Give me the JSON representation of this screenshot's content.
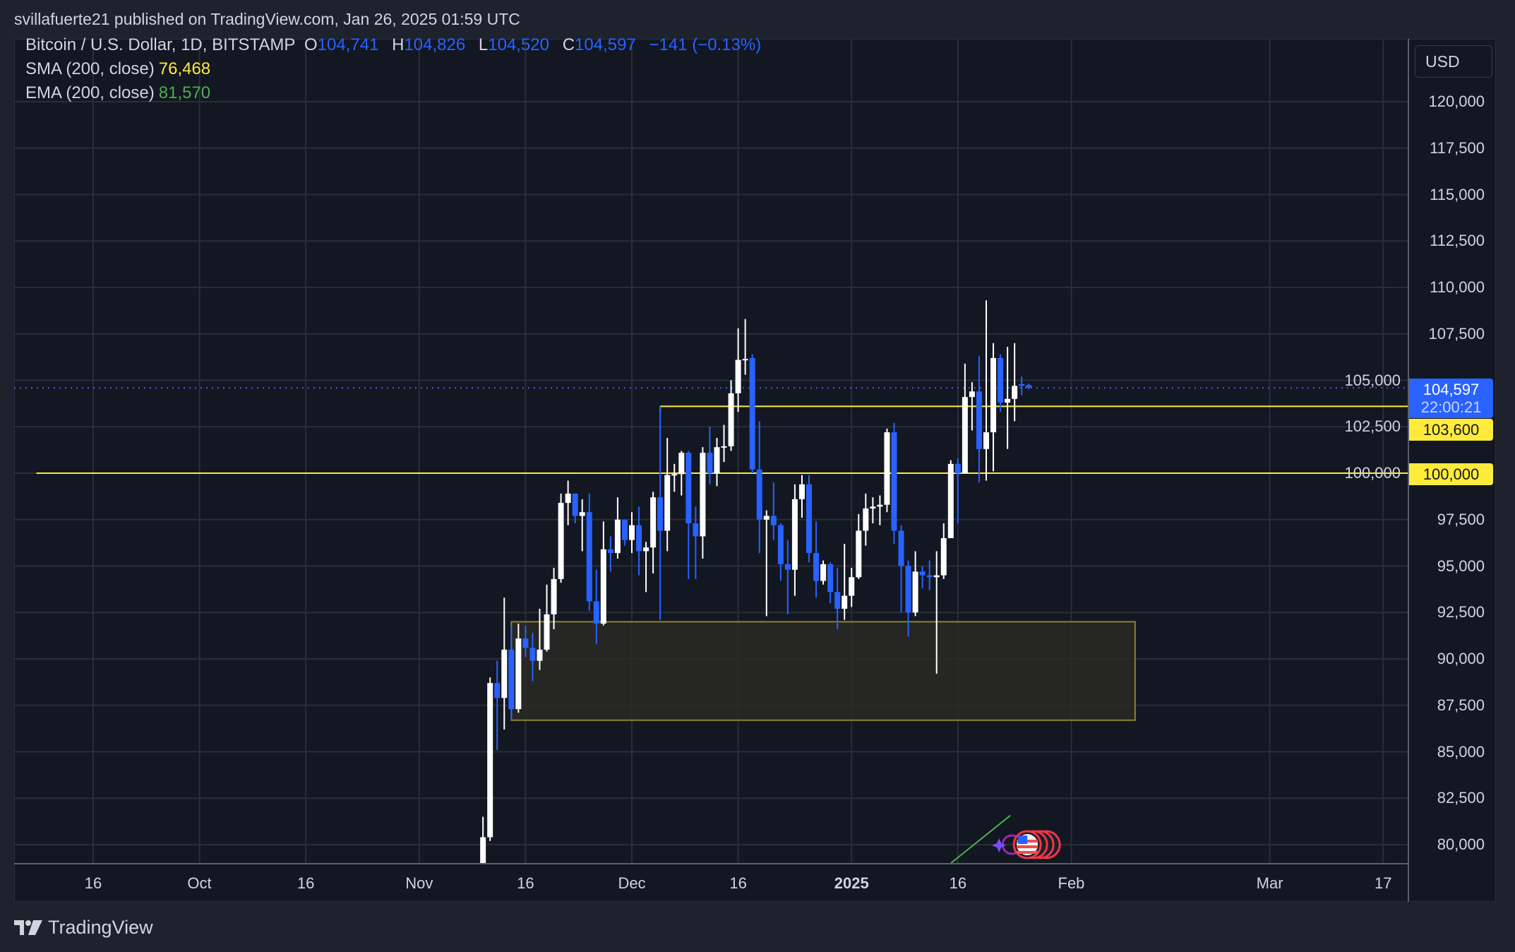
{
  "header": {
    "published": "svillafuerte21 published on TradingView.com, Jan 26, 2025 01:59 UTC"
  },
  "legend": {
    "symbol": "Bitcoin / U.S. Dollar, 1D, BITSTAMP",
    "o_label": "O",
    "o": "104,741",
    "h_label": "H",
    "h": "104,826",
    "l_label": "L",
    "l": "104,520",
    "c_label": "C",
    "c": "104,597",
    "change": "−141 (−0.13%)",
    "sma_label": "SMA (200, close)",
    "sma": "76,468",
    "ema_label": "EMA (200, close)",
    "ema": "81,570"
  },
  "axis": {
    "currency": "USD"
  },
  "tags": {
    "price": "104,597",
    "countdown": "22:00:21",
    "level1": "103,600",
    "level2": "100,000"
  },
  "footer": {
    "brand": "TradingView"
  },
  "colors": {
    "bull": "#ffffff",
    "bear": "#2962ff",
    "level": "#ffeb3b",
    "zone_fill": "#2a2926",
    "zone_border": "#8c8430",
    "ema": "#4caf50",
    "grid": "#2a2e39",
    "background": "#131722"
  },
  "chart_data": {
    "type": "candlestick",
    "title": "Bitcoin / U.S. Dollar, 1D, BITSTAMP",
    "ylim": [
      79000,
      122500
    ],
    "xlim": [
      "2024-09-08",
      "2025-03-19"
    ],
    "grid": true,
    "y_ticks": [
      80000,
      82500,
      85000,
      87500,
      90000,
      92500,
      95000,
      97500,
      100000,
      102500,
      105000,
      107500,
      110000,
      112500,
      115000,
      117500,
      120000
    ],
    "y_tick_labels": [
      "80,000",
      "82,500",
      "85,000",
      "87,500",
      "90,000",
      "92,500",
      "95,000",
      "97,500",
      "100,000",
      "102,500",
      "105,000",
      "107,500",
      "110,000",
      "112,500",
      "115,000",
      "117,500",
      "120,000"
    ],
    "x_ticks": [
      {
        "date": "2024-09-16",
        "label": "16"
      },
      {
        "date": "2024-10-01",
        "label": "Oct"
      },
      {
        "date": "2024-10-16",
        "label": "16"
      },
      {
        "date": "2024-11-01",
        "label": "Nov"
      },
      {
        "date": "2024-11-16",
        "label": "16"
      },
      {
        "date": "2024-12-01",
        "label": "Dec"
      },
      {
        "date": "2024-12-16",
        "label": "16"
      },
      {
        "date": "2025-01-01",
        "label": "2025",
        "bold": true
      },
      {
        "date": "2025-01-16",
        "label": "16"
      },
      {
        "date": "2025-02-01",
        "label": "Feb"
      },
      {
        "date": "2025-03-01",
        "label": "Mar"
      },
      {
        "date": "2025-03-17",
        "label": "17"
      }
    ],
    "candles_columns": [
      "date",
      "open",
      "high",
      "low",
      "close"
    ],
    "candles": [
      [
        "2024-11-10",
        76700,
        81500,
        76500,
        80400
      ],
      [
        "2024-11-11",
        80400,
        89000,
        80200,
        88700
      ],
      [
        "2024-11-12",
        88700,
        89900,
        85100,
        87900
      ],
      [
        "2024-11-13",
        87900,
        93300,
        86200,
        90500
      ],
      [
        "2024-11-14",
        90500,
        91800,
        86700,
        87300
      ],
      [
        "2024-11-15",
        87300,
        91900,
        87100,
        91100
      ],
      [
        "2024-11-16",
        91100,
        91800,
        90100,
        90600
      ],
      [
        "2024-11-17",
        90600,
        91400,
        88800,
        89900
      ],
      [
        "2024-11-18",
        89900,
        92700,
        89400,
        90500
      ],
      [
        "2024-11-19",
        90500,
        94000,
        90400,
        92400
      ],
      [
        "2024-11-20",
        92400,
        94900,
        91600,
        94300
      ],
      [
        "2024-11-21",
        94300,
        98900,
        94100,
        98400
      ],
      [
        "2024-11-22",
        98400,
        99600,
        97200,
        98900
      ],
      [
        "2024-11-23",
        98900,
        98900,
        97300,
        97700
      ],
      [
        "2024-11-24",
        97700,
        98600,
        95800,
        97900
      ],
      [
        "2024-11-25",
        97900,
        98900,
        92600,
        93100
      ],
      [
        "2024-11-26",
        93100,
        94800,
        90800,
        91900
      ],
      [
        "2024-11-27",
        91900,
        97400,
        91800,
        95900
      ],
      [
        "2024-11-28",
        95900,
        96600,
        94700,
        95700
      ],
      [
        "2024-11-29",
        95700,
        98700,
        95400,
        97500
      ],
      [
        "2024-11-30",
        97500,
        97500,
        96100,
        96400
      ],
      [
        "2024-12-01",
        96400,
        97900,
        95700,
        97200
      ],
      [
        "2024-12-02",
        97200,
        98200,
        94500,
        95800
      ],
      [
        "2024-12-03",
        95800,
        96300,
        93600,
        96000
      ],
      [
        "2024-12-04",
        96000,
        99000,
        94600,
        98700
      ],
      [
        "2024-12-05",
        98700,
        103600,
        92100,
        96900
      ],
      [
        "2024-12-06",
        96900,
        101900,
        95800,
        99900
      ],
      [
        "2024-12-07",
        99900,
        100500,
        99000,
        99950
      ],
      [
        "2024-12-08",
        99950,
        101200,
        98800,
        101100
      ],
      [
        "2024-12-09",
        101100,
        101200,
        94300,
        97300
      ],
      [
        "2024-12-10",
        97300,
        98200,
        94300,
        96600
      ],
      [
        "2024-12-11",
        96600,
        101400,
        95400,
        101100
      ],
      [
        "2024-12-12",
        101100,
        102500,
        99400,
        100000
      ],
      [
        "2024-12-13",
        100000,
        101900,
        99300,
        101400
      ],
      [
        "2024-12-14",
        101400,
        102600,
        100600,
        101450
      ],
      [
        "2024-12-15",
        101450,
        105000,
        101200,
        104300
      ],
      [
        "2024-12-16",
        104300,
        107800,
        103300,
        106100
      ],
      [
        "2024-12-17",
        106100,
        108300,
        105300,
        106150
      ],
      [
        "2024-12-18",
        106200,
        106400,
        100000,
        100200
      ],
      [
        "2024-12-19",
        100200,
        102800,
        95700,
        97500
      ],
      [
        "2024-12-20",
        97500,
        98000,
        92300,
        97700
      ],
      [
        "2024-12-21",
        97700,
        99500,
        96400,
        97200
      ],
      [
        "2024-12-22",
        97200,
        97300,
        94200,
        95100
      ],
      [
        "2024-12-23",
        95100,
        96400,
        92400,
        94800
      ],
      [
        "2024-12-24",
        94800,
        99400,
        93400,
        98600
      ],
      [
        "2024-12-25",
        98600,
        99900,
        97600,
        99400
      ],
      [
        "2024-12-26",
        99400,
        99900,
        95200,
        95700
      ],
      [
        "2024-12-27",
        95700,
        97400,
        93300,
        94200
      ],
      [
        "2024-12-28",
        94200,
        95300,
        94000,
        95100
      ],
      [
        "2024-12-29",
        95100,
        95200,
        93000,
        93600
      ],
      [
        "2024-12-30",
        93600,
        94900,
        91600,
        92700
      ],
      [
        "2024-12-31",
        92700,
        96200,
        92100,
        93400
      ],
      [
        "2025-01-01",
        93400,
        94900,
        92800,
        94400
      ],
      [
        "2025-01-02",
        94400,
        97800,
        94300,
        96900
      ],
      [
        "2025-01-03",
        96900,
        98900,
        96100,
        98100
      ],
      [
        "2025-01-04",
        98100,
        98700,
        97300,
        98200
      ],
      [
        "2025-01-05",
        98200,
        98800,
        97200,
        98300
      ],
      [
        "2025-01-06",
        98300,
        102400,
        97900,
        102200
      ],
      [
        "2025-01-07",
        102200,
        102700,
        96200,
        96900
      ],
      [
        "2025-01-08",
        96900,
        97200,
        92500,
        95000
      ],
      [
        "2025-01-09",
        95000,
        95300,
        91200,
        92500
      ],
      [
        "2025-01-10",
        92500,
        95800,
        92300,
        94700
      ],
      [
        "2025-01-11",
        94700,
        95000,
        93800,
        94500
      ],
      [
        "2025-01-12",
        94500,
        95300,
        93700,
        94400
      ],
      [
        "2025-01-13",
        94400,
        95800,
        89200,
        94500
      ],
      [
        "2025-01-14",
        94500,
        97300,
        94300,
        96500
      ],
      [
        "2025-01-15",
        96500,
        100700,
        96500,
        100500
      ],
      [
        "2025-01-16",
        100500,
        100800,
        97300,
        100000
      ],
      [
        "2025-01-17",
        100000,
        105900,
        100000,
        104100
      ],
      [
        "2025-01-18",
        104100,
        104900,
        102300,
        104400
      ],
      [
        "2025-01-19",
        104400,
        106300,
        99500,
        101300
      ],
      [
        "2025-01-20",
        101300,
        109300,
        99600,
        102200
      ],
      [
        "2025-01-21",
        102200,
        107000,
        100100,
        106200
      ],
      [
        "2025-01-22",
        106200,
        106400,
        103300,
        103800
      ],
      [
        "2025-01-23",
        103800,
        106800,
        101300,
        104000
      ],
      [
        "2025-01-24",
        104000,
        107000,
        102800,
        104700
      ],
      [
        "2025-01-25",
        104800,
        105200,
        104200,
        104700
      ],
      [
        "2025-01-26",
        104741,
        104826,
        104520,
        104597
      ]
    ],
    "horizontal_levels": [
      {
        "value": 103600,
        "from": "2024-12-05"
      },
      {
        "value": 100000,
        "from": "2024-09-08"
      }
    ],
    "current_price": 104597,
    "zone": {
      "from": "2024-11-14",
      "to": "2025-02-10",
      "low": 86700,
      "high": 92000
    },
    "ema_segment": [
      [
        "2025-01-15",
        79000
      ],
      [
        "2025-01-23",
        81570
      ]
    ]
  }
}
